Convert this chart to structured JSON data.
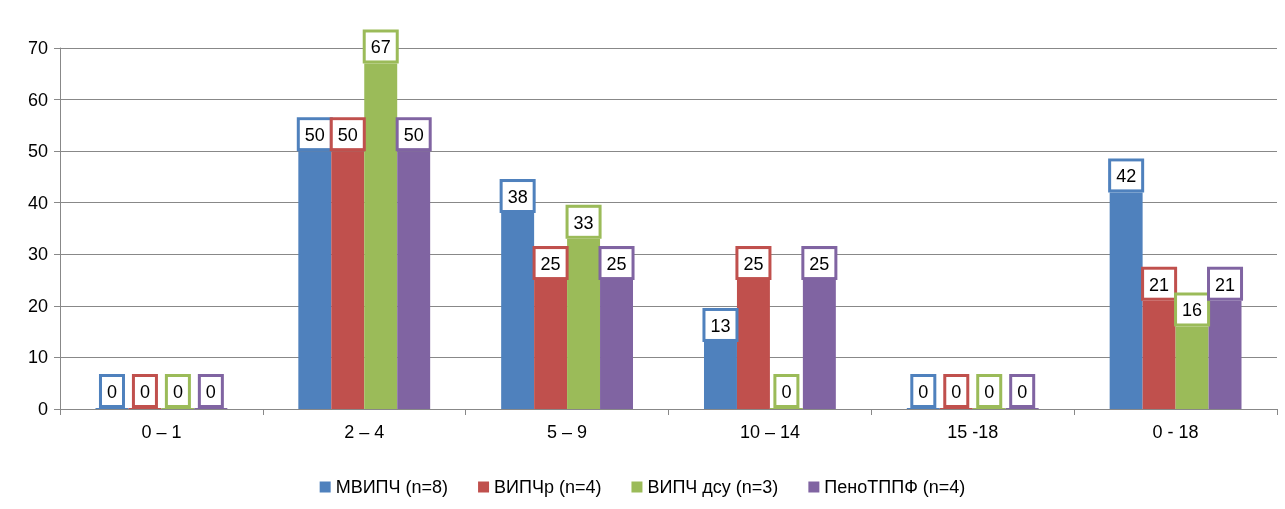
{
  "chart_data": {
    "type": "bar",
    "categories": [
      "0 – 1",
      "2 – 4",
      "5 – 9",
      "10 – 14",
      "15 -18",
      "0 - 18"
    ],
    "series": [
      {
        "name": "МВИПЧ (n=8)",
        "color": "#4f81bd",
        "values": [
          0,
          50,
          38,
          13,
          0,
          42
        ]
      },
      {
        "name": "ВИПЧр (n=4)",
        "color": "#c0504d",
        "values": [
          0,
          50,
          25,
          25,
          0,
          21
        ]
      },
      {
        "name": "ВИПЧ дсу (n=3)",
        "color": "#9bbb59",
        "values": [
          0,
          67,
          33,
          0,
          0,
          16
        ]
      },
      {
        "name": "ПеноТППФ (n=4)",
        "color": "#8064a2",
        "values": [
          0,
          50,
          25,
          25,
          0,
          21
        ]
      }
    ],
    "ylim": [
      0,
      70
    ],
    "yticks": [
      0,
      10,
      20,
      30,
      40,
      50,
      60,
      70
    ],
    "grid": "y",
    "legend": "bottom",
    "data_labels": true
  }
}
